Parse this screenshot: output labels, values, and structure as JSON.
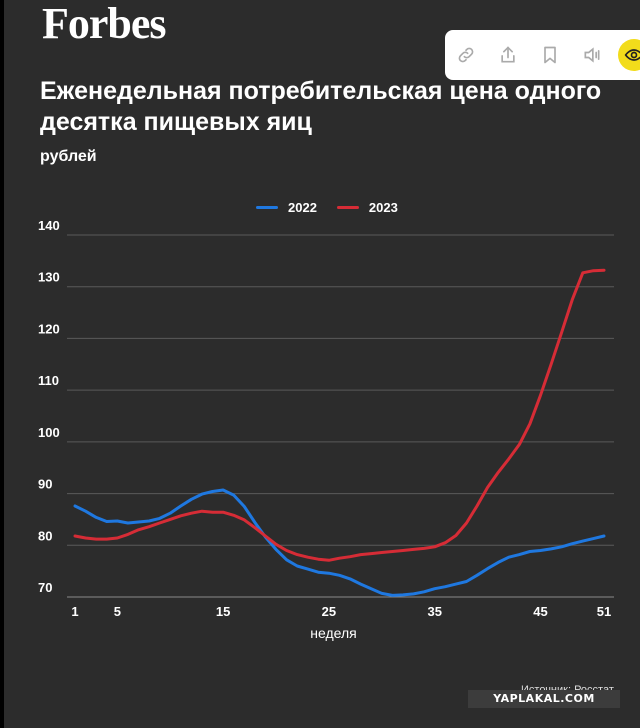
{
  "header": {
    "logo_text": "Forbes"
  },
  "toolbar": {
    "icons": [
      "link-icon",
      "share-icon",
      "bookmark-icon",
      "audio-icon",
      "eye-icon"
    ],
    "accent": "#f2dc1b"
  },
  "chart_data": {
    "type": "line",
    "title": "Еженедельная потребительская цена одного десятка пищевых яиц",
    "subtitle": "рублей",
    "xlabel": "неделя",
    "ylabel": "",
    "xlim": [
      1,
      51
    ],
    "ylim": [
      70,
      140
    ],
    "xticks": [
      1,
      5,
      15,
      25,
      35,
      45,
      51
    ],
    "yticks": [
      70,
      80,
      90,
      100,
      110,
      120,
      130,
      140
    ],
    "grid": true,
    "legend_position": "top",
    "x": [
      1,
      2,
      3,
      4,
      5,
      6,
      7,
      8,
      9,
      10,
      11,
      12,
      13,
      14,
      15,
      16,
      17,
      18,
      19,
      20,
      21,
      22,
      23,
      24,
      25,
      26,
      27,
      28,
      29,
      30,
      31,
      32,
      33,
      34,
      35,
      36,
      37,
      38,
      39,
      40,
      41,
      42,
      43,
      44,
      45,
      46,
      47,
      48,
      49,
      50,
      51
    ],
    "series": [
      {
        "name": "2022",
        "color": "#1f78e0",
        "values": [
          87.6,
          86.6,
          85.4,
          84.6,
          84.7,
          84.3,
          84.5,
          84.7,
          85.2,
          86.2,
          87.6,
          88.9,
          89.9,
          90.4,
          90.7,
          89.7,
          87.5,
          84.4,
          81.6,
          79.2,
          77.2,
          76.0,
          75.4,
          74.8,
          74.6,
          74.2,
          73.5,
          72.5,
          71.6,
          70.7,
          70.3,
          70.4,
          70.6,
          71.0,
          71.6,
          72.0,
          72.5,
          73.0,
          74.2,
          75.5,
          76.7,
          77.7,
          78.2,
          78.8,
          79.0,
          79.3,
          79.7,
          80.3,
          80.8,
          81.3,
          81.8
        ]
      },
      {
        "name": "2023",
        "color": "#d62c36",
        "values": [
          81.8,
          81.4,
          81.2,
          81.2,
          81.4,
          82.1,
          83.0,
          83.6,
          84.3,
          85.0,
          85.7,
          86.2,
          86.6,
          86.4,
          86.4,
          85.8,
          84.9,
          83.4,
          81.8,
          80.2,
          79.0,
          78.2,
          77.7,
          77.3,
          77.1,
          77.5,
          77.8,
          78.2,
          78.4,
          78.6,
          78.8,
          79.0,
          79.2,
          79.4,
          79.7,
          80.5,
          81.9,
          84.3,
          87.6,
          91.2,
          94.1,
          96.7,
          99.5,
          103.5,
          109.0,
          115.0,
          121.2,
          127.5,
          132.7,
          133.1,
          133.2
        ]
      }
    ]
  },
  "footer": {
    "source": "Источник: Росстат",
    "watermark": "YAPLAKAL.COM"
  }
}
